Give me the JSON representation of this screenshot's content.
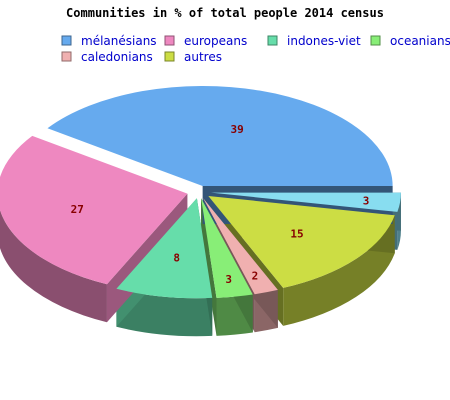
{
  "chart_data": {
    "type": "pie",
    "title": "Communities in % of total people 2014 census",
    "categories": [
      "mélanésians",
      "europeans",
      "indones-viet",
      "oceanians",
      "caledonians",
      "autres"
    ],
    "values": [
      39,
      27,
      8,
      3,
      2,
      15
    ],
    "small_slice": {
      "name": "",
      "value": 3,
      "color": "#88ddf0"
    },
    "colors": [
      "#66aaee",
      "#ee88c0",
      "#66ddaa",
      "#88ee77",
      "#f0b0b0",
      "#ccdd44"
    ],
    "legend_placement": "top",
    "legend_text_color": "#0000cc",
    "label_color": "#880000",
    "exploded": true,
    "three_d": true
  }
}
